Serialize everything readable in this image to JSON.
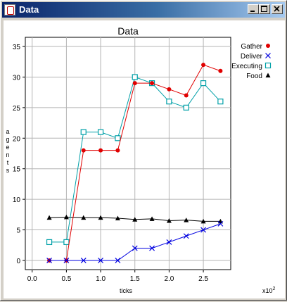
{
  "window": {
    "title": "Data",
    "buttons": {
      "minimize": "minimize",
      "maximize": "maximize",
      "close": "close"
    }
  },
  "colors": {
    "gather": "#e00000",
    "deliver": "#0000e0",
    "executing": "#00a0a8",
    "food": "#000000"
  },
  "chart_data": {
    "type": "line",
    "title": "Data",
    "xlabel": "ticks",
    "ylabel": "agents",
    "x_multiplier_label": "x10",
    "x_multiplier_exp": "2",
    "xlim": [
      -0.1,
      2.9
    ],
    "ylim": [
      -1.5,
      36.5
    ],
    "xticks": [
      0.0,
      0.5,
      1.0,
      1.5,
      2.0,
      2.5
    ],
    "xtick_labels": [
      "0.0",
      "0.5",
      "1.0",
      "1.5",
      "2.0",
      "2.5"
    ],
    "yticks": [
      0,
      5,
      10,
      15,
      20,
      25,
      30,
      35
    ],
    "ytick_labels": [
      "0",
      "5",
      "10",
      "15",
      "20",
      "25",
      "30",
      "35"
    ],
    "grid": true,
    "legend_position": "top-right-outside",
    "x": [
      0.25,
      0.5,
      0.75,
      1.0,
      1.25,
      1.5,
      1.75,
      2.0,
      2.25,
      2.5,
      2.75
    ],
    "series": [
      {
        "name": "Gather",
        "marker": "circle",
        "color": "#e00000",
        "values": [
          0,
          0,
          18,
          18,
          18,
          29,
          29,
          28,
          27,
          32,
          31
        ]
      },
      {
        "name": "Deliver",
        "marker": "x",
        "color": "#0000e0",
        "values": [
          0,
          0,
          0,
          0,
          0,
          2,
          2,
          3,
          4,
          5,
          6
        ]
      },
      {
        "name": "Executing",
        "marker": "square",
        "color": "#00a0a8",
        "values": [
          3,
          3,
          21,
          21,
          20,
          30,
          29,
          26,
          25,
          29,
          26
        ]
      },
      {
        "name": "Food",
        "marker": "triangle",
        "color": "#000000",
        "values": [
          7,
          7.1,
          7,
          7,
          6.9,
          6.7,
          6.8,
          6.5,
          6.6,
          6.4,
          6.4
        ]
      }
    ]
  }
}
